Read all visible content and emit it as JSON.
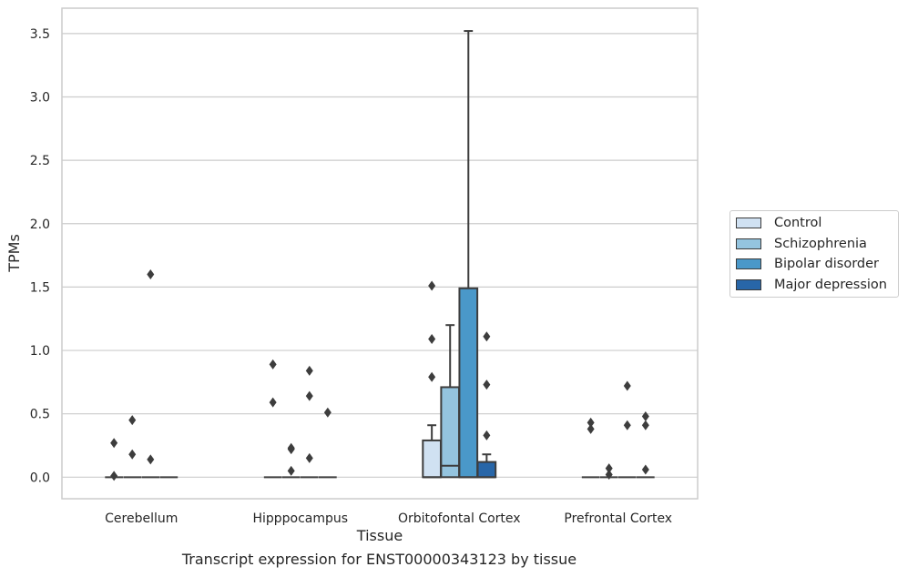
{
  "caption": "Transcript expression for ENST00000343123 by tissue",
  "legend": {
    "items": [
      {
        "label": "Control",
        "color": "#d0e1f2"
      },
      {
        "label": "Schizophrenia",
        "color": "#94c4df"
      },
      {
        "label": "Bipolar disorder",
        "color": "#4a98c9"
      },
      {
        "label": "Major depression",
        "color": "#2866a8"
      }
    ]
  },
  "chart_data": {
    "type": "box",
    "xlabel": "Tissue",
    "ylabel": "TPMs",
    "ylim": [
      -0.17,
      3.7
    ],
    "yticks": [
      "0.0",
      "0.5",
      "1.0",
      "1.5",
      "2.0",
      "2.5",
      "3.0",
      "3.5"
    ],
    "categories": [
      "Cerebellum",
      "Hipppocampus",
      "Orbitofontal Cortex",
      "Prefrontal Cortex"
    ],
    "grid": "horizontal",
    "legend_position": "right",
    "series": [
      {
        "name": "Control",
        "color": "#d0e1f2",
        "boxes": [
          {
            "q1": 0,
            "median": 0,
            "q3": 0,
            "whislo": 0,
            "whishi": 0,
            "fliers": [
              0.27,
              0.01
            ]
          },
          {
            "q1": 0,
            "median": 0,
            "q3": 0,
            "whislo": 0,
            "whishi": 0,
            "fliers": [
              0.59,
              0.89
            ]
          },
          {
            "q1": 0,
            "median": 0,
            "q3": 0.29,
            "whislo": 0,
            "whishi": 0.41,
            "fliers": [
              0.79,
              1.09,
              1.51
            ]
          },
          {
            "q1": 0,
            "median": 0,
            "q3": 0,
            "whislo": 0,
            "whishi": 0,
            "fliers": [
              0.38,
              0.43
            ]
          }
        ]
      },
      {
        "name": "Schizophrenia",
        "color": "#94c4df",
        "boxes": [
          {
            "q1": 0,
            "median": 0,
            "q3": 0,
            "whislo": 0,
            "whishi": 0,
            "fliers": [
              0.18,
              0.45
            ]
          },
          {
            "q1": 0,
            "median": 0,
            "q3": 0,
            "whislo": 0,
            "whishi": 0,
            "fliers": [
              0.05,
              0.22,
              0.23
            ]
          },
          {
            "q1": 0,
            "median": 0.09,
            "q3": 0.71,
            "whislo": 0,
            "whishi": 1.2,
            "fliers": []
          },
          {
            "q1": 0,
            "median": 0,
            "q3": 0,
            "whislo": 0,
            "whishi": 0,
            "fliers": [
              0.02,
              0.07
            ]
          }
        ]
      },
      {
        "name": "Bipolar disorder",
        "color": "#4a98c9",
        "boxes": [
          {
            "q1": 0,
            "median": 0,
            "q3": 0,
            "whislo": 0,
            "whishi": 0,
            "fliers": [
              1.6,
              0.14
            ]
          },
          {
            "q1": 0,
            "median": 0,
            "q3": 0,
            "whislo": 0,
            "whishi": 0,
            "fliers": [
              0.15,
              0.64,
              0.84
            ]
          },
          {
            "q1": 0,
            "median": 0,
            "q3": 1.49,
            "whislo": 0,
            "whishi": 3.52,
            "fliers": []
          },
          {
            "q1": 0,
            "median": 0,
            "q3": 0,
            "whislo": 0,
            "whishi": 0,
            "fliers": [
              0.41,
              0.72
            ]
          }
        ]
      },
      {
        "name": "Major depression",
        "color": "#2866a8",
        "boxes": [
          {
            "q1": 0,
            "median": 0,
            "q3": 0,
            "whislo": 0,
            "whishi": 0,
            "fliers": []
          },
          {
            "q1": 0,
            "median": 0,
            "q3": 0,
            "whislo": 0,
            "whishi": 0,
            "fliers": [
              0.51
            ]
          },
          {
            "q1": 0,
            "median": 0,
            "q3": 0.12,
            "whislo": 0,
            "whishi": 0.18,
            "fliers": [
              0.33,
              0.73,
              1.11
            ]
          },
          {
            "q1": 0,
            "median": 0,
            "q3": 0,
            "whislo": 0,
            "whishi": 0,
            "fliers": [
              0.06,
              0.41,
              0.48
            ]
          }
        ]
      }
    ]
  }
}
